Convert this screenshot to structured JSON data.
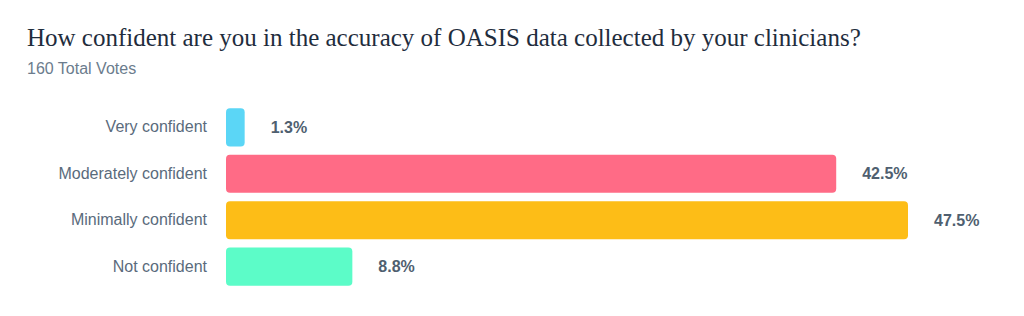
{
  "chart_data": {
    "type": "bar",
    "orientation": "horizontal",
    "title": "How confident are you in the accuracy of OASIS data collected by your clinicians?",
    "subtitle": "160 Total Votes",
    "categories": [
      "Very confident",
      "Moderately confident",
      "Minimally confident",
      "Not confident"
    ],
    "values": [
      1.3,
      42.5,
      47.5,
      8.8
    ],
    "value_labels": [
      "1.3%",
      "42.5%",
      "47.5%",
      "8.8%"
    ],
    "colors": [
      "#5bd6f6",
      "#ff6b86",
      "#fdbd17",
      "#5cfcc8"
    ],
    "data_labels": true,
    "tick_labels": "y",
    "grid": false
  }
}
